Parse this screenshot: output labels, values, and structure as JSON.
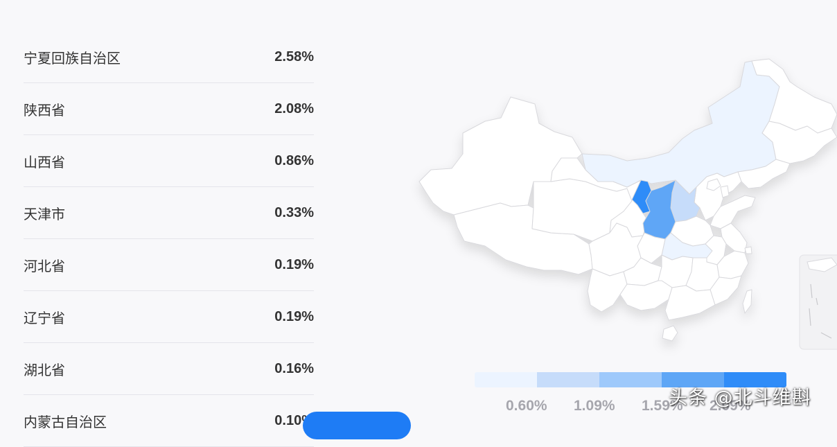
{
  "regions": [
    {
      "name": "宁夏回族自治区",
      "value": "2.58%"
    },
    {
      "name": "陕西省",
      "value": "2.08%"
    },
    {
      "name": "山西省",
      "value": "0.86%"
    },
    {
      "name": "天津市",
      "value": "0.33%"
    },
    {
      "name": "河北省",
      "value": "0.19%"
    },
    {
      "name": "辽宁省",
      "value": "0.19%"
    },
    {
      "name": "湖北省",
      "value": "0.16%"
    },
    {
      "name": "内蒙古自治区",
      "value": "0.10%"
    }
  ],
  "legend": {
    "colors": [
      "#ecf4ff",
      "#c6dcfa",
      "#9ec9fb",
      "#5ea6f6",
      "#2f8cf8"
    ],
    "ticks": [
      "0.60%",
      "1.09%",
      "1.59%",
      "2.09%"
    ]
  },
  "map_colors": {
    "default": "#ffffff",
    "border": "#d8d8dc",
    "ningxia": "#2f8cf8",
    "shaanxi": "#5ea6f6",
    "shanxi": "#c6dcfa",
    "light": "#ecf4ff"
  },
  "watermark": "头条 @北斗维斟"
}
